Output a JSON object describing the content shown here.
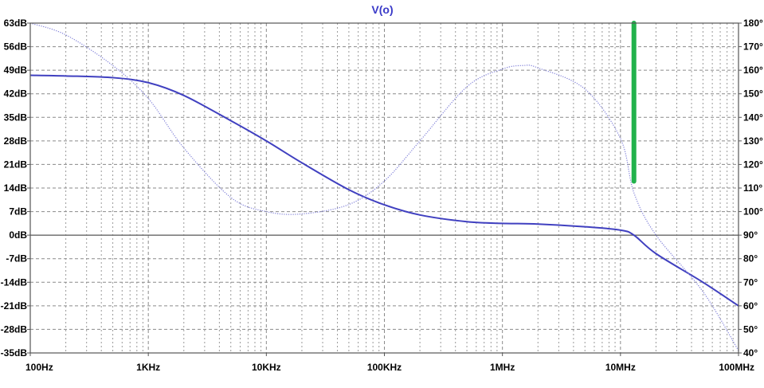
{
  "chart_data": {
    "type": "line",
    "title": "V(o)",
    "x_scale": "log",
    "xlim": [
      100,
      100000000
    ],
    "ylim_left": [
      -35,
      63
    ],
    "ylim_right": [
      40,
      180
    ],
    "x_tick_labels": [
      "100Hz",
      "1KHz",
      "10KHz",
      "100KHz",
      "1MHz",
      "10MHz",
      "100MHz"
    ],
    "x_ticks": [
      100,
      1000,
      10000,
      100000,
      1000000,
      10000000,
      100000000
    ],
    "y_left_ticks": [
      63,
      56,
      49,
      42,
      35,
      28,
      21,
      14,
      7,
      0,
      -7,
      -14,
      -21,
      -28,
      -35
    ],
    "y_left_tick_labels": [
      "63dB",
      "56dB",
      "49dB",
      "42dB",
      "35dB",
      "28dB",
      "21dB",
      "14dB",
      "7dB",
      "0dB",
      "-7dB",
      "-14dB",
      "-21dB",
      "-28dB",
      "-35dB"
    ],
    "y_right_ticks": [
      180,
      170,
      160,
      150,
      140,
      130,
      120,
      110,
      100,
      90,
      80,
      70,
      60,
      50,
      40
    ],
    "y_right_tick_labels": [
      "180°",
      "170°",
      "160°",
      "150°",
      "140°",
      "130°",
      "120°",
      "110°",
      "100°",
      "90°",
      "80°",
      "70°",
      "60°",
      "50°",
      "40°"
    ],
    "grid": true,
    "series": [
      {
        "axis": "left",
        "style": "solid",
        "color": "#4040c0",
        "x": [
          100,
          200,
          500,
          1000,
          2000,
          5000,
          10000,
          20000,
          50000,
          100000,
          200000,
          500000,
          1000000,
          2000000,
          5000000,
          10000000,
          13000000,
          20000000,
          50000000,
          100000000
        ],
        "y": [
          47.5,
          47.3,
          46.8,
          45.3,
          41.5,
          34,
          28,
          21.5,
          13.5,
          9,
          6,
          4,
          3.5,
          3.3,
          2.5,
          1.5,
          0,
          -5.5,
          -14,
          -21
        ]
      },
      {
        "axis": "right",
        "style": "dotted",
        "color": "#8080d8",
        "x": [
          100,
          200,
          500,
          1000,
          2000,
          5000,
          10000,
          20000,
          50000,
          100000,
          200000,
          500000,
          1000000,
          1500000,
          2000000,
          5000000,
          10000000,
          13000000,
          20000000,
          50000000,
          100000000
        ],
        "y": [
          180,
          175,
          162,
          148,
          127,
          106,
          100,
          99,
          103,
          113,
          130,
          153,
          160.5,
          162,
          161,
          152,
          131,
          108,
          90,
          66,
          41
        ]
      }
    ],
    "cursor": {
      "color": "#22b24c",
      "x": 13000000,
      "y_top": 63,
      "y_bottom": 16
    }
  }
}
